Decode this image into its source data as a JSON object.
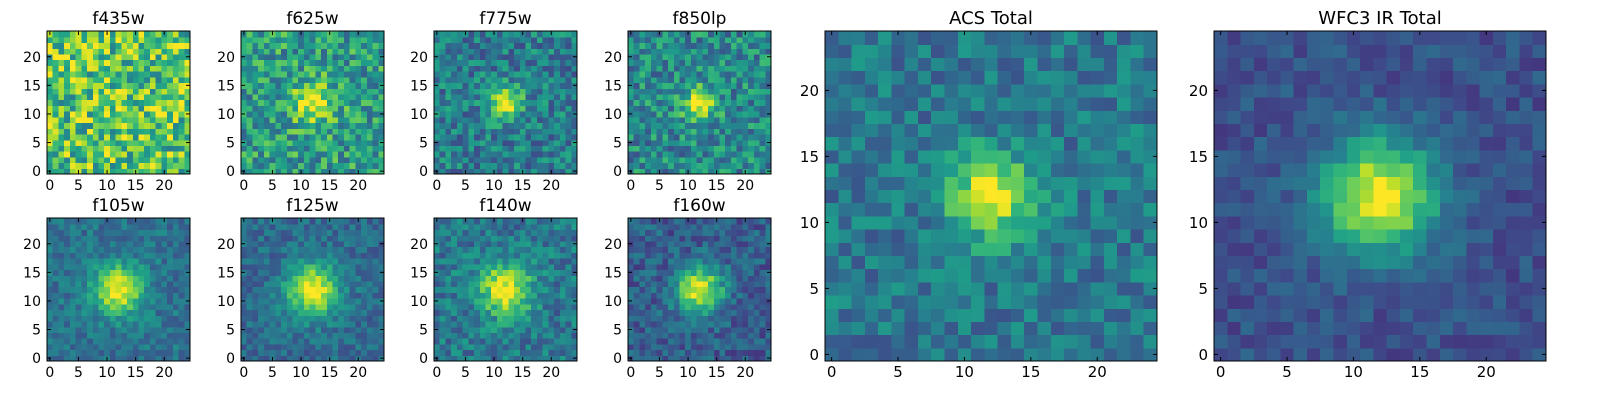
{
  "chart_data": [
    {
      "type": "heatmap",
      "title": "f435w",
      "size": 25,
      "xticks": [
        0,
        5,
        10,
        15,
        20
      ],
      "yticks": [
        0,
        5,
        10,
        15,
        20
      ],
      "xlim": [
        -0.5,
        24.5
      ],
      "ylim": [
        -0.5,
        24.5
      ],
      "peak": [
        12,
        12
      ],
      "signal": 0.05,
      "background": 0.72,
      "noise": 0.3,
      "width": 3.0,
      "seed": 11
    },
    {
      "type": "heatmap",
      "title": "f625w",
      "size": 25,
      "xticks": [
        0,
        5,
        10,
        15,
        20
      ],
      "yticks": [
        0,
        5,
        10,
        15,
        20
      ],
      "xlim": [
        -0.5,
        24.5
      ],
      "ylim": [
        -0.5,
        24.5
      ],
      "peak": [
        12,
        12
      ],
      "signal": 0.3,
      "background": 0.55,
      "noise": 0.24,
      "width": 2.5,
      "seed": 23
    },
    {
      "type": "heatmap",
      "title": "f775w",
      "size": 25,
      "xticks": [
        0,
        5,
        10,
        15,
        20
      ],
      "yticks": [
        0,
        5,
        10,
        15,
        20
      ],
      "xlim": [
        -0.5,
        24.5
      ],
      "ylim": [
        -0.5,
        24.5
      ],
      "peak": [
        12,
        12
      ],
      "signal": 0.55,
      "background": 0.42,
      "noise": 0.2,
      "width": 2.0,
      "seed": 37
    },
    {
      "type": "heatmap",
      "title": "f850lp",
      "size": 25,
      "xticks": [
        0,
        5,
        10,
        15,
        20
      ],
      "yticks": [
        0,
        5,
        10,
        15,
        20
      ],
      "xlim": [
        -0.5,
        24.5
      ],
      "ylim": [
        -0.5,
        24.5
      ],
      "peak": [
        12,
        12
      ],
      "signal": 0.5,
      "background": 0.47,
      "noise": 0.22,
      "width": 2.0,
      "seed": 41
    },
    {
      "type": "heatmap",
      "title": "f105w",
      "size": 25,
      "xticks": [
        0,
        5,
        10,
        15,
        20
      ],
      "yticks": [
        0,
        5,
        10,
        15,
        20
      ],
      "xlim": [
        -0.5,
        24.5
      ],
      "ylim": [
        -0.5,
        24.5
      ],
      "peak": [
        12,
        12
      ],
      "signal": 0.55,
      "background": 0.38,
      "noise": 0.12,
      "width": 3.0,
      "seed": 53
    },
    {
      "type": "heatmap",
      "title": "f125w",
      "size": 25,
      "xticks": [
        0,
        5,
        10,
        15,
        20
      ],
      "yticks": [
        0,
        5,
        10,
        15,
        20
      ],
      "xlim": [
        -0.5,
        24.5
      ],
      "ylim": [
        -0.5,
        24.5
      ],
      "peak": [
        12,
        12
      ],
      "signal": 0.58,
      "background": 0.35,
      "noise": 0.12,
      "width": 3.2,
      "seed": 67
    },
    {
      "type": "heatmap",
      "title": "f140w",
      "size": 25,
      "xticks": [
        0,
        5,
        10,
        15,
        20
      ],
      "yticks": [
        0,
        5,
        10,
        15,
        20
      ],
      "xlim": [
        -0.5,
        24.5
      ],
      "ylim": [
        -0.5,
        24.5
      ],
      "peak": [
        12,
        12
      ],
      "signal": 0.45,
      "background": 0.4,
      "noise": 0.16,
      "width": 3.2,
      "seed": 71
    },
    {
      "type": "heatmap",
      "title": "f160w",
      "size": 25,
      "xticks": [
        0,
        5,
        10,
        15,
        20
      ],
      "yticks": [
        0,
        5,
        10,
        15,
        20
      ],
      "xlim": [
        -0.5,
        24.5
      ],
      "ylim": [
        -0.5,
        24.5
      ],
      "peak": [
        12,
        12
      ],
      "signal": 0.6,
      "background": 0.3,
      "noise": 0.14,
      "width": 2.8,
      "seed": 83
    },
    {
      "type": "heatmap",
      "title": "ACS Total",
      "size": 25,
      "xticks": [
        0,
        5,
        10,
        15,
        20
      ],
      "yticks": [
        0,
        5,
        10,
        15,
        20
      ],
      "xlim": [
        -0.5,
        24.5
      ],
      "ylim": [
        -0.5,
        24.5
      ],
      "peak": [
        12,
        12
      ],
      "signal": 0.6,
      "background": 0.4,
      "noise": 0.15,
      "width": 2.2,
      "seed": 97
    },
    {
      "type": "heatmap",
      "title": "WFC3 IR Total",
      "size": 25,
      "xticks": [
        0,
        5,
        10,
        15,
        20
      ],
      "yticks": [
        0,
        5,
        10,
        15,
        20
      ],
      "xlim": [
        -0.5,
        24.5
      ],
      "ylim": [
        -0.5,
        24.5
      ],
      "peak": [
        12,
        12
      ],
      "signal": 0.7,
      "background": 0.25,
      "noise": 0.09,
      "width": 3.0,
      "seed": 101
    }
  ],
  "colormap": {
    "name": "viridis",
    "stops": [
      "#440154",
      "#482878",
      "#3e4a89",
      "#31688e",
      "#26828e",
      "#1f9e89",
      "#35b779",
      "#6ece58",
      "#b5de2b",
      "#fde725"
    ]
  }
}
